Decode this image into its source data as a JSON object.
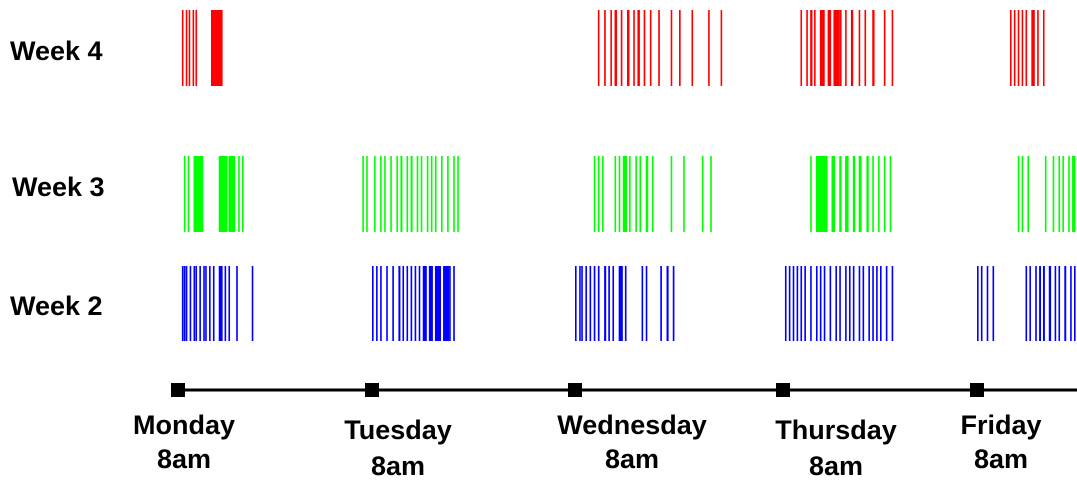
{
  "chart_data": {
    "type": "timeline",
    "title": "",
    "x_ticks": [
      {
        "day": "Monday",
        "time": "8am"
      },
      {
        "day": "Tuesday",
        "time": "8am"
      },
      {
        "day": "Wednesday",
        "time": "8am"
      },
      {
        "day": "Thursday",
        "time": "8am"
      },
      {
        "day": "Friday",
        "time": "8am"
      }
    ],
    "x_range_days": [
      0,
      4.5
    ],
    "series": [
      {
        "name": "Week 4",
        "color": "#ff0000",
        "events": [
          [
            0.02,
            0.003
          ],
          [
            0.04,
            0.003
          ],
          [
            0.055,
            0.003
          ],
          [
            0.075,
            0.003
          ],
          [
            0.09,
            0.003
          ],
          [
            0.17,
            0.06
          ],
          [
            2.11,
            0.004
          ],
          [
            2.14,
            0.008
          ],
          [
            2.17,
            0.004
          ],
          [
            2.19,
            0.012
          ],
          [
            2.22,
            0.008
          ],
          [
            2.25,
            0.012
          ],
          [
            2.28,
            0.004
          ],
          [
            2.3,
            0.012
          ],
          [
            2.33,
            0.008
          ],
          [
            2.36,
            0.004
          ],
          [
            2.4,
            0.008
          ],
          [
            2.46,
            0.004
          ],
          [
            2.5,
            0.008
          ],
          [
            2.56,
            0.004
          ],
          [
            2.64,
            0.004
          ],
          [
            2.7,
            0.004
          ],
          [
            3.09,
            0.004
          ],
          [
            3.12,
            0.008
          ],
          [
            3.14,
            0.012
          ],
          [
            3.16,
            0.006
          ],
          [
            3.19,
            0.025
          ],
          [
            3.23,
            0.018
          ],
          [
            3.26,
            0.03
          ],
          [
            3.29,
            0.012
          ],
          [
            3.32,
            0.008
          ],
          [
            3.35,
            0.012
          ],
          [
            3.39,
            0.008
          ],
          [
            3.42,
            0.004
          ],
          [
            3.46,
            0.012
          ],
          [
            3.52,
            0.004
          ],
          [
            3.56,
            0.004
          ],
          [
            4.17,
            0.004
          ],
          [
            4.19,
            0.006
          ],
          [
            4.21,
            0.004
          ],
          [
            4.23,
            0.006
          ],
          [
            4.25,
            0.008
          ],
          [
            4.28,
            0.018
          ],
          [
            4.31,
            0.008
          ],
          [
            4.34,
            0.004
          ]
        ]
      },
      {
        "name": "Week 3",
        "color": "#00ff00",
        "events": [
          [
            0.03,
            0.004
          ],
          [
            0.05,
            0.006
          ],
          [
            0.08,
            0.05
          ],
          [
            0.21,
            0.045
          ],
          [
            0.26,
            0.035
          ],
          [
            0.31,
            0.004
          ],
          [
            0.33,
            0.004
          ],
          [
            0.95,
            0.003
          ],
          [
            0.97,
            0.003
          ],
          [
            1.01,
            0.004
          ],
          [
            1.04,
            0.006
          ],
          [
            1.06,
            0.006
          ],
          [
            1.09,
            0.006
          ],
          [
            1.12,
            0.004
          ],
          [
            1.14,
            0.01
          ],
          [
            1.17,
            0.004
          ],
          [
            1.19,
            0.01
          ],
          [
            1.22,
            0.008
          ],
          [
            1.24,
            0.006
          ],
          [
            1.27,
            0.006
          ],
          [
            1.29,
            0.006
          ],
          [
            1.31,
            0.004
          ],
          [
            1.34,
            0.008
          ],
          [
            1.37,
            0.006
          ],
          [
            1.4,
            0.004
          ],
          [
            1.42,
            0.004
          ],
          [
            2.09,
            0.003
          ],
          [
            2.11,
            0.003
          ],
          [
            2.13,
            0.003
          ],
          [
            2.19,
            0.004
          ],
          [
            2.21,
            0.004
          ],
          [
            2.23,
            0.02
          ],
          [
            2.26,
            0.004
          ],
          [
            2.29,
            0.006
          ],
          [
            2.31,
            0.008
          ],
          [
            2.34,
            0.012
          ],
          [
            2.37,
            0.004
          ],
          [
            2.46,
            0.004
          ],
          [
            2.52,
            0.004
          ],
          [
            2.61,
            0.003
          ],
          [
            2.65,
            0.003
          ],
          [
            3.14,
            0.006
          ],
          [
            3.17,
            0.06
          ],
          [
            3.25,
            0.018
          ],
          [
            3.29,
            0.012
          ],
          [
            3.32,
            0.018
          ],
          [
            3.36,
            0.012
          ],
          [
            3.39,
            0.015
          ],
          [
            3.43,
            0.012
          ],
          [
            3.46,
            0.008
          ],
          [
            3.49,
            0.008
          ],
          [
            3.52,
            0.004
          ],
          [
            3.55,
            0.004
          ],
          [
            4.21,
            0.003
          ],
          [
            4.23,
            0.003
          ],
          [
            4.26,
            0.004
          ],
          [
            4.35,
            0.003
          ],
          [
            4.39,
            0.003
          ],
          [
            4.42,
            0.004
          ],
          [
            4.44,
            0.004
          ],
          [
            4.47,
            0.008
          ],
          [
            4.49,
            0.018
          ]
        ]
      },
      {
        "name": "Week 2",
        "color": "#0000ff",
        "events": [
          [
            0.02,
            0.003
          ],
          [
            0.03,
            0.003
          ],
          [
            0.04,
            0.006
          ],
          [
            0.06,
            0.004
          ],
          [
            0.08,
            0.004
          ],
          [
            0.09,
            0.003
          ],
          [
            0.11,
            0.006
          ],
          [
            0.13,
            0.004
          ],
          [
            0.14,
            0.003
          ],
          [
            0.16,
            0.004
          ],
          [
            0.18,
            0.003
          ],
          [
            0.21,
            0.02
          ],
          [
            0.24,
            0.006
          ],
          [
            0.26,
            0.004
          ],
          [
            0.3,
            0.004
          ],
          [
            0.38,
            0.003
          ],
          [
            1.0,
            0.004
          ],
          [
            1.02,
            0.006
          ],
          [
            1.04,
            0.008
          ],
          [
            1.07,
            0.006
          ],
          [
            1.1,
            0.008
          ],
          [
            1.13,
            0.01
          ],
          [
            1.15,
            0.004
          ],
          [
            1.17,
            0.004
          ],
          [
            1.19,
            0.008
          ],
          [
            1.21,
            0.006
          ],
          [
            1.23,
            0.004
          ],
          [
            1.25,
            0.02
          ],
          [
            1.28,
            0.02
          ],
          [
            1.31,
            0.03
          ],
          [
            1.35,
            0.03
          ],
          [
            1.38,
            0.008
          ],
          [
            1.4,
            0.008
          ],
          [
            2.0,
            0.003
          ],
          [
            2.02,
            0.003
          ],
          [
            2.03,
            0.004
          ],
          [
            2.05,
            0.004
          ],
          [
            2.07,
            0.006
          ],
          [
            2.09,
            0.008
          ],
          [
            2.11,
            0.008
          ],
          [
            2.14,
            0.01
          ],
          [
            2.16,
            0.008
          ],
          [
            2.18,
            0.006
          ],
          [
            2.21,
            0.02
          ],
          [
            2.24,
            0.006
          ],
          [
            2.32,
            0.004
          ],
          [
            2.34,
            0.004
          ],
          [
            2.41,
            0.008
          ],
          [
            2.44,
            0.01
          ],
          [
            2.47,
            0.008
          ],
          [
            3.01,
            0.006
          ],
          [
            3.03,
            0.004
          ],
          [
            3.05,
            0.006
          ],
          [
            3.07,
            0.004
          ],
          [
            3.09,
            0.008
          ],
          [
            3.11,
            0.004
          ],
          [
            3.14,
            0.008
          ],
          [
            3.17,
            0.006
          ],
          [
            3.19,
            0.004
          ],
          [
            3.21,
            0.006
          ],
          [
            3.24,
            0.004
          ],
          [
            3.27,
            0.006
          ],
          [
            3.29,
            0.004
          ],
          [
            3.32,
            0.004
          ],
          [
            3.34,
            0.008
          ],
          [
            3.36,
            0.004
          ],
          [
            3.39,
            0.006
          ],
          [
            3.41,
            0.004
          ],
          [
            3.44,
            0.004
          ],
          [
            3.46,
            0.004
          ],
          [
            3.48,
            0.004
          ],
          [
            3.5,
            0.004
          ],
          [
            3.53,
            0.004
          ],
          [
            3.56,
            0.004
          ],
          [
            4.0,
            0.004
          ],
          [
            4.02,
            0.003
          ],
          [
            4.05,
            0.003
          ],
          [
            4.08,
            0.003
          ],
          [
            4.25,
            0.003
          ],
          [
            4.27,
            0.004
          ],
          [
            4.3,
            0.006
          ],
          [
            4.32,
            0.01
          ],
          [
            4.34,
            0.01
          ],
          [
            4.37,
            0.012
          ],
          [
            4.4,
            0.008
          ],
          [
            4.42,
            0.006
          ],
          [
            4.45,
            0.01
          ],
          [
            4.48,
            0.008
          ],
          [
            4.5,
            0.004
          ],
          [
            4.52,
            0.004
          ],
          [
            4.54,
            0.004
          ]
        ]
      }
    ]
  }
}
